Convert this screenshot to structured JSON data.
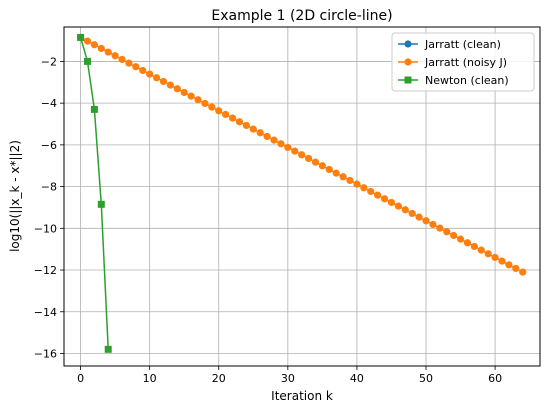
{
  "chart_data": {
    "type": "line",
    "title": "Example 1 (2D circle-line)",
    "xlabel": "Iteration k",
    "ylabel": "log10(||x_k - x*||2)",
    "xlim": [
      -2.4,
      66.5
    ],
    "ylim": [
      -16.6,
      -0.35
    ],
    "xticks": [
      0,
      10,
      20,
      30,
      40,
      50,
      60
    ],
    "yticks": [
      -2,
      -4,
      -6,
      -8,
      -10,
      -12,
      -14,
      -16
    ],
    "grid": true,
    "legend_position": "top-right",
    "series": [
      {
        "name": "Jarratt (clean)",
        "color": "#1f77b4",
        "marker": "circle",
        "x": [
          0
        ],
        "y": [
          -0.85
        ]
      },
      {
        "name": "Jarratt (noisy J)",
        "color": "#ff7f0e",
        "marker": "circle",
        "x": [
          0,
          64
        ],
        "y": [
          -0.85,
          -12.1
        ],
        "points": 65
      },
      {
        "name": "Newton (clean)",
        "color": "#2ca02c",
        "marker": "square",
        "x": [
          0,
          1,
          2,
          3,
          4
        ],
        "y": [
          -0.85,
          -2.0,
          -4.3,
          -8.85,
          -15.8
        ]
      }
    ]
  }
}
